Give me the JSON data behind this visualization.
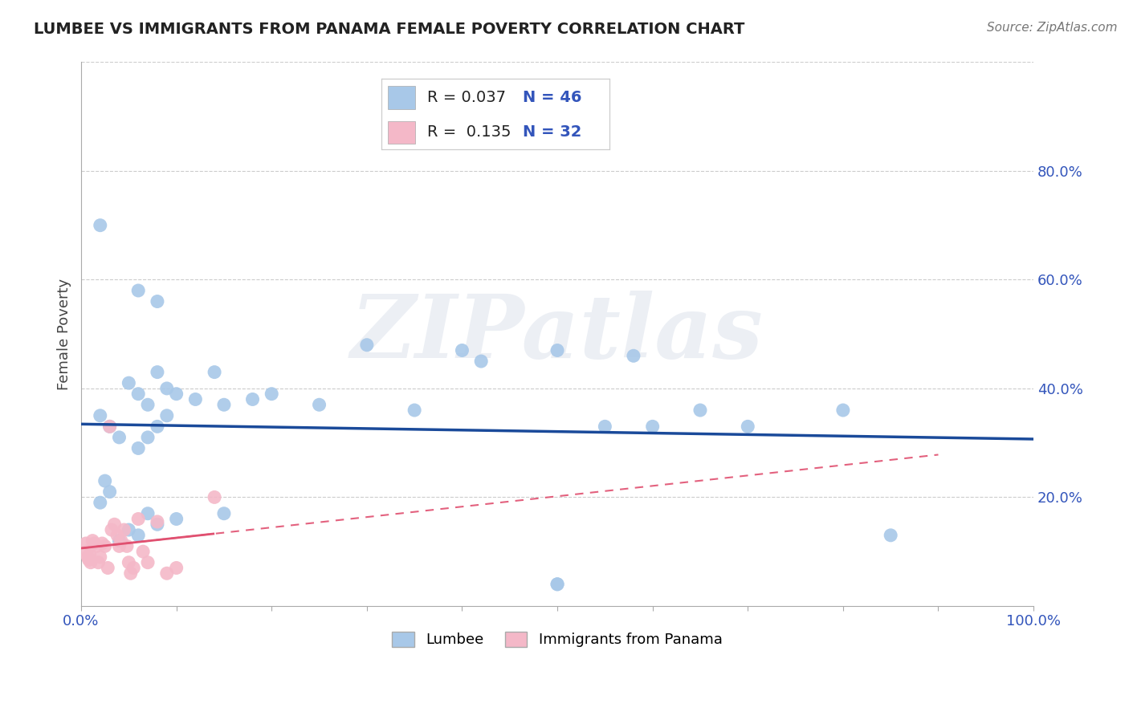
{
  "title": "LUMBEE VS IMMIGRANTS FROM PANAMA FEMALE POVERTY CORRELATION CHART",
  "source": "Source: ZipAtlas.com",
  "ylabel": "Female Poverty",
  "xlim": [
    0.0,
    1.0
  ],
  "ylim": [
    0.0,
    1.0
  ],
  "background_color": "#ffffff",
  "grid_color": "#cccccc",
  "watermark": "ZIPatlas",
  "lumbee_color": "#a8c8e8",
  "panama_color": "#f4b8c8",
  "lumbee_line_color": "#1a4a9a",
  "panama_line_color": "#e05070",
  "lumbee_R": "0.037",
  "lumbee_N": "46",
  "panama_R": "0.135",
  "panama_N": "32",
  "tick_color": "#3355bb",
  "lumbee_x": [
    0.02,
    0.06,
    0.08,
    0.02,
    0.03,
    0.04,
    0.05,
    0.06,
    0.07,
    0.08,
    0.09,
    0.1,
    0.12,
    0.14,
    0.06,
    0.07,
    0.08,
    0.09,
    0.15,
    0.18,
    0.2,
    0.25,
    0.3,
    0.35,
    0.4,
    0.42,
    0.5,
    0.55,
    0.58,
    0.6,
    0.65,
    0.7,
    0.5,
    0.025,
    0.03,
    0.04,
    0.05,
    0.06,
    0.07,
    0.08,
    0.1,
    0.15,
    0.8,
    0.85,
    0.5,
    0.02
  ],
  "lumbee_y": [
    0.7,
    0.58,
    0.56,
    0.35,
    0.33,
    0.31,
    0.41,
    0.39,
    0.37,
    0.43,
    0.4,
    0.39,
    0.38,
    0.43,
    0.29,
    0.31,
    0.33,
    0.35,
    0.37,
    0.38,
    0.39,
    0.37,
    0.48,
    0.36,
    0.47,
    0.45,
    0.47,
    0.33,
    0.46,
    0.33,
    0.36,
    0.33,
    0.04,
    0.23,
    0.21,
    0.12,
    0.14,
    0.13,
    0.17,
    0.15,
    0.16,
    0.17,
    0.36,
    0.13,
    0.04,
    0.19
  ],
  "panama_x": [
    0.005,
    0.006,
    0.007,
    0.008,
    0.009,
    0.01,
    0.012,
    0.014,
    0.016,
    0.018,
    0.02,
    0.022,
    0.025,
    0.028,
    0.03,
    0.032,
    0.035,
    0.038,
    0.04,
    0.042,
    0.045,
    0.048,
    0.05,
    0.052,
    0.055,
    0.06,
    0.065,
    0.07,
    0.08,
    0.09,
    0.1,
    0.14
  ],
  "panama_y": [
    0.115,
    0.1,
    0.09,
    0.085,
    0.095,
    0.08,
    0.12,
    0.115,
    0.11,
    0.08,
    0.09,
    0.115,
    0.11,
    0.07,
    0.33,
    0.14,
    0.15,
    0.13,
    0.11,
    0.12,
    0.14,
    0.11,
    0.08,
    0.06,
    0.07,
    0.16,
    0.1,
    0.08,
    0.155,
    0.06,
    0.07,
    0.2
  ]
}
